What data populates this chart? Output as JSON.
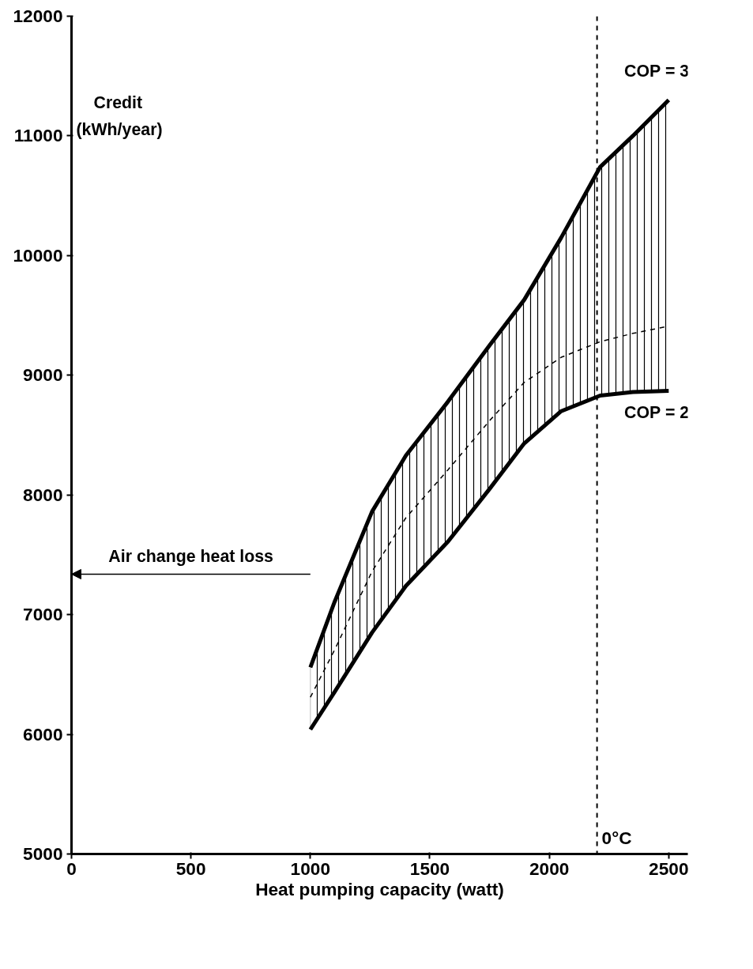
{
  "chart_data": {
    "type": "line",
    "xlabel": "Heat pumping capacity (watt)",
    "ylabel": "Credit (kWh/year)",
    "x": [
      1000,
      1100,
      1258,
      1400,
      1576,
      1750,
      1895,
      2050,
      2213,
      2350,
      2500
    ],
    "series": [
      {
        "name": "COP = 3",
        "color": "#000000",
        "line_style": "solid",
        "values": [
          6560,
          7100,
          7860,
          8330,
          8780,
          9250,
          9630,
          10150,
          10740,
          11000,
          11300
        ]
      },
      {
        "name": "COP = 2",
        "color": "#000000",
        "line_style": "solid",
        "values": [
          6040,
          6350,
          6850,
          7240,
          7610,
          8050,
          8430,
          8700,
          8830,
          8860,
          8870
        ]
      },
      {
        "color": "#000000",
        "line_style": "dashed",
        "values": [
          6310,
          6700,
          7360,
          7810,
          8210,
          8620,
          8940,
          9150,
          9280,
          9350,
          9410
        ],
        "lower": [
          6040,
          6350,
          6850,
          7240,
          7610,
          8050,
          8430,
          8700,
          8830,
          8860,
          8870
        ],
        "upper": [
          6560,
          7100,
          7860,
          8330,
          8780,
          9250,
          9630,
          10150,
          10740,
          11000,
          11300
        ]
      }
    ],
    "xlim": [
      0,
      2580
    ],
    "ylim": [
      5000,
      12000
    ],
    "xticks": [
      0,
      500,
      1000,
      1500,
      2000,
      2500
    ],
    "yticks": [
      5000,
      6000,
      7000,
      8000,
      9000,
      10000,
      11000,
      12000
    ],
    "ref_lines": [
      {
        "axis": "x",
        "value": 2200,
        "label": "0°C",
        "line_style": "dashed",
        "color": "#000000"
      }
    ],
    "annotations": [
      "Air change heat loss"
    ],
    "grid": false
  }
}
